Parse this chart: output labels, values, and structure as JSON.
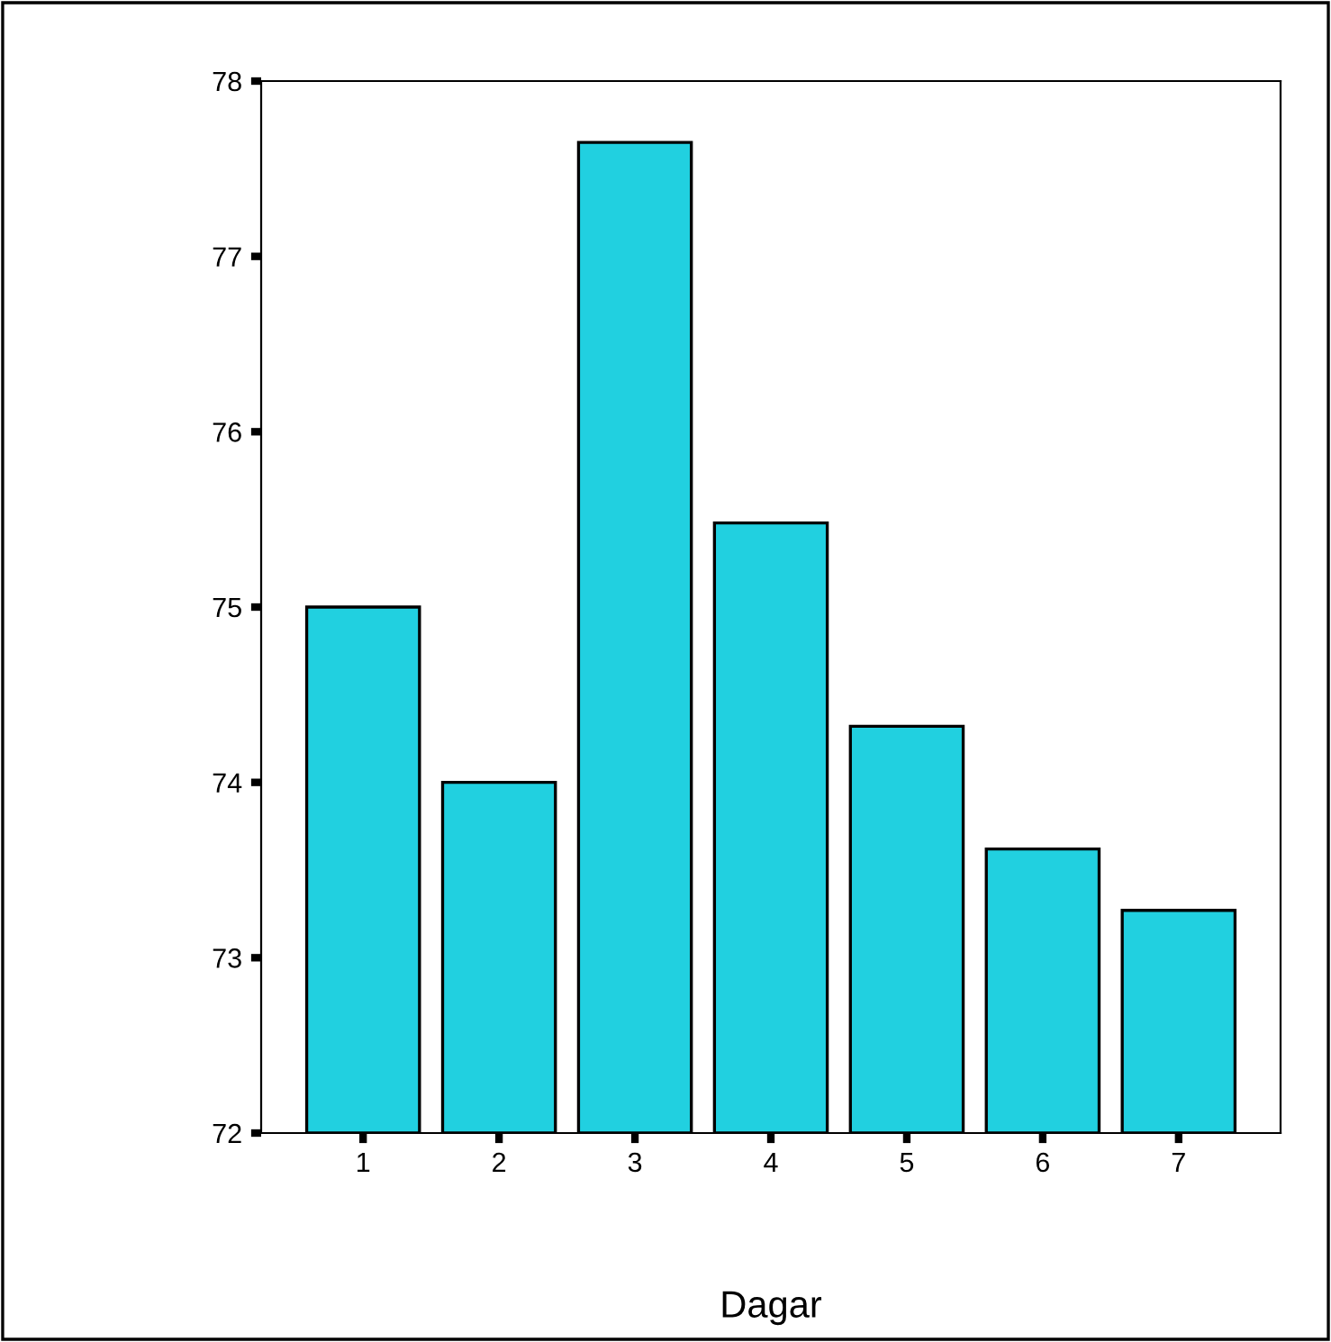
{
  "chart_data": {
    "type": "bar",
    "xlabel": "Dagar",
    "categories": [
      "1",
      "2",
      "3",
      "4",
      "5",
      "6",
      "7"
    ],
    "values": [
      75.0,
      74.0,
      77.65,
      75.48,
      74.32,
      73.62,
      73.27
    ],
    "color": "#21d0e0",
    "ylim": [
      72,
      78
    ],
    "yticks": [
      72,
      73,
      74,
      75,
      76,
      77,
      78
    ],
    "grid": false,
    "legend": false
  }
}
